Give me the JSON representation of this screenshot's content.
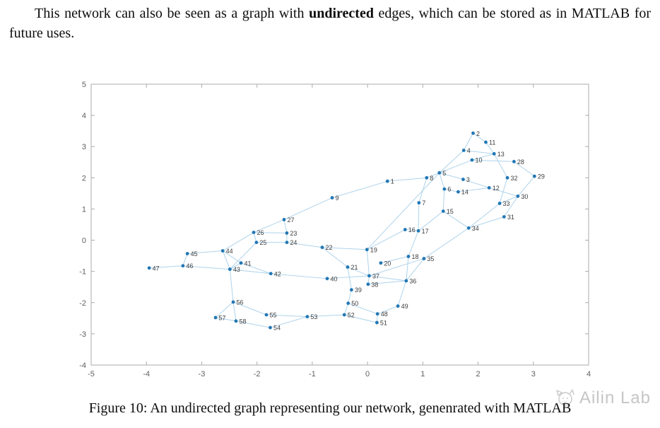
{
  "paragraph": {
    "text_before_bold": "This network can also be seen as a graph with ",
    "bold_word": "undirected",
    "text_after_bold": " edges, which can be stored as in MATLAB for future uses."
  },
  "figure": {
    "caption": "Figure 10: An undirected graph representing our network, genenrated with MATLAB"
  },
  "watermark": {
    "text": "Ailin Lab"
  },
  "chart_data": {
    "type": "scatter",
    "title": "",
    "xlabel": "",
    "ylabel": "",
    "grid": false,
    "xlim": [
      -5,
      4
    ],
    "ylim": [
      -4,
      5
    ],
    "xticks": [
      -5,
      -4,
      -3,
      -2,
      -1,
      0,
      1,
      2,
      3,
      4
    ],
    "yticks": [
      -4,
      -3,
      -2,
      -1,
      0,
      1,
      2,
      3,
      4,
      5
    ],
    "colors": {
      "node": "#2277b4",
      "edge": "#aed3eb",
      "node_label": "#3d3d3d",
      "axis": "#ababab",
      "tick_label": "#606060"
    },
    "nodes": [
      [
        1,
        0.36,
        1.89
      ],
      [
        2,
        1.91,
        3.43
      ],
      [
        3,
        1.73,
        1.95
      ],
      [
        4,
        1.74,
        2.88
      ],
      [
        5,
        1.3,
        2.16
      ],
      [
        6,
        1.39,
        1.64
      ],
      [
        7,
        0.93,
        1.2
      ],
      [
        8,
        1.07,
        2.0
      ],
      [
        9,
        -0.64,
        1.36
      ],
      [
        10,
        1.89,
        2.57
      ],
      [
        11,
        2.14,
        3.14
      ],
      [
        12,
        2.2,
        1.68
      ],
      [
        13,
        2.29,
        2.77
      ],
      [
        14,
        1.64,
        1.55
      ],
      [
        15,
        1.37,
        0.93
      ],
      [
        16,
        0.68,
        0.34
      ],
      [
        17,
        0.92,
        0.3
      ],
      [
        18,
        0.74,
        -0.52
      ],
      [
        19,
        -0.01,
        -0.3
      ],
      [
        20,
        0.24,
        -0.73
      ],
      [
        21,
        -0.36,
        -0.86
      ],
      [
        22,
        -0.82,
        -0.23
      ],
      [
        23,
        -1.46,
        0.23
      ],
      [
        24,
        -1.46,
        -0.07
      ],
      [
        25,
        -2.01,
        -0.07
      ],
      [
        26,
        -2.06,
        0.25
      ],
      [
        27,
        -1.51,
        0.66
      ],
      [
        28,
        2.65,
        2.52
      ],
      [
        29,
        3.02,
        2.05
      ],
      [
        30,
        2.72,
        1.41
      ],
      [
        31,
        2.47,
        0.75
      ],
      [
        32,
        2.53,
        2.0
      ],
      [
        33,
        2.39,
        1.18
      ],
      [
        34,
        1.83,
        0.39
      ],
      [
        35,
        1.02,
        -0.59
      ],
      [
        36,
        0.7,
        -1.3
      ],
      [
        37,
        0.03,
        -1.14
      ],
      [
        38,
        0.01,
        -1.41
      ],
      [
        39,
        -0.29,
        -1.59
      ],
      [
        40,
        -0.73,
        -1.23
      ],
      [
        41,
        -2.29,
        -0.73
      ],
      [
        42,
        -1.75,
        -1.07
      ],
      [
        43,
        -2.49,
        -0.93
      ],
      [
        44,
        -2.62,
        -0.34
      ],
      [
        45,
        -3.26,
        -0.43
      ],
      [
        46,
        -3.34,
        -0.82
      ],
      [
        47,
        -3.95,
        -0.89
      ],
      [
        48,
        0.18,
        -2.36
      ],
      [
        49,
        0.55,
        -2.11
      ],
      [
        50,
        -0.35,
        -2.02
      ],
      [
        51,
        0.17,
        -2.64
      ],
      [
        52,
        -0.42,
        -2.39
      ],
      [
        53,
        -1.09,
        -2.45
      ],
      [
        54,
        -1.76,
        -2.8
      ],
      [
        55,
        -1.83,
        -2.39
      ],
      [
        56,
        -2.43,
        -1.98
      ],
      [
        57,
        -2.75,
        -2.48
      ],
      [
        58,
        -2.38,
        -2.59
      ]
    ],
    "edges": [
      [
        1,
        8
      ],
      [
        1,
        9
      ],
      [
        9,
        27
      ],
      [
        2,
        4
      ],
      [
        2,
        11
      ],
      [
        4,
        5
      ],
      [
        4,
        13
      ],
      [
        11,
        13
      ],
      [
        10,
        13
      ],
      [
        5,
        10
      ],
      [
        10,
        28
      ],
      [
        13,
        32
      ],
      [
        28,
        29
      ],
      [
        29,
        30
      ],
      [
        5,
        8
      ],
      [
        5,
        3
      ],
      [
        5,
        6
      ],
      [
        5,
        19
      ],
      [
        3,
        12
      ],
      [
        12,
        14
      ],
      [
        12,
        30
      ],
      [
        6,
        14
      ],
      [
        6,
        15
      ],
      [
        7,
        8
      ],
      [
        7,
        17
      ],
      [
        15,
        17
      ],
      [
        15,
        34
      ],
      [
        16,
        17
      ],
      [
        16,
        19
      ],
      [
        17,
        18
      ],
      [
        18,
        20
      ],
      [
        18,
        36
      ],
      [
        32,
        33
      ],
      [
        30,
        31
      ],
      [
        30,
        33
      ],
      [
        33,
        34
      ],
      [
        31,
        34
      ],
      [
        34,
        35
      ],
      [
        35,
        36
      ],
      [
        35,
        37
      ],
      [
        19,
        22
      ],
      [
        19,
        37
      ],
      [
        21,
        22
      ],
      [
        21,
        37
      ],
      [
        21,
        39
      ],
      [
        22,
        24
      ],
      [
        23,
        27
      ],
      [
        26,
        27
      ],
      [
        23,
        26
      ],
      [
        23,
        24
      ],
      [
        24,
        25
      ],
      [
        25,
        26
      ],
      [
        26,
        44
      ],
      [
        25,
        43
      ],
      [
        40,
        42
      ],
      [
        40,
        37
      ],
      [
        37,
        38
      ],
      [
        37,
        36
      ],
      [
        38,
        36
      ],
      [
        39,
        50
      ],
      [
        41,
        43
      ],
      [
        41,
        44
      ],
      [
        41,
        42
      ],
      [
        42,
        43
      ],
      [
        43,
        44
      ],
      [
        43,
        46
      ],
      [
        43,
        56
      ],
      [
        44,
        45
      ],
      [
        45,
        46
      ],
      [
        46,
        47
      ],
      [
        48,
        49
      ],
      [
        48,
        51
      ],
      [
        49,
        36
      ],
      [
        50,
        48
      ],
      [
        50,
        52
      ],
      [
        51,
        52
      ],
      [
        52,
        53
      ],
      [
        53,
        54
      ],
      [
        53,
        55
      ],
      [
        54,
        58
      ],
      [
        55,
        56
      ],
      [
        56,
        57
      ],
      [
        56,
        58
      ],
      [
        57,
        58
      ]
    ]
  }
}
